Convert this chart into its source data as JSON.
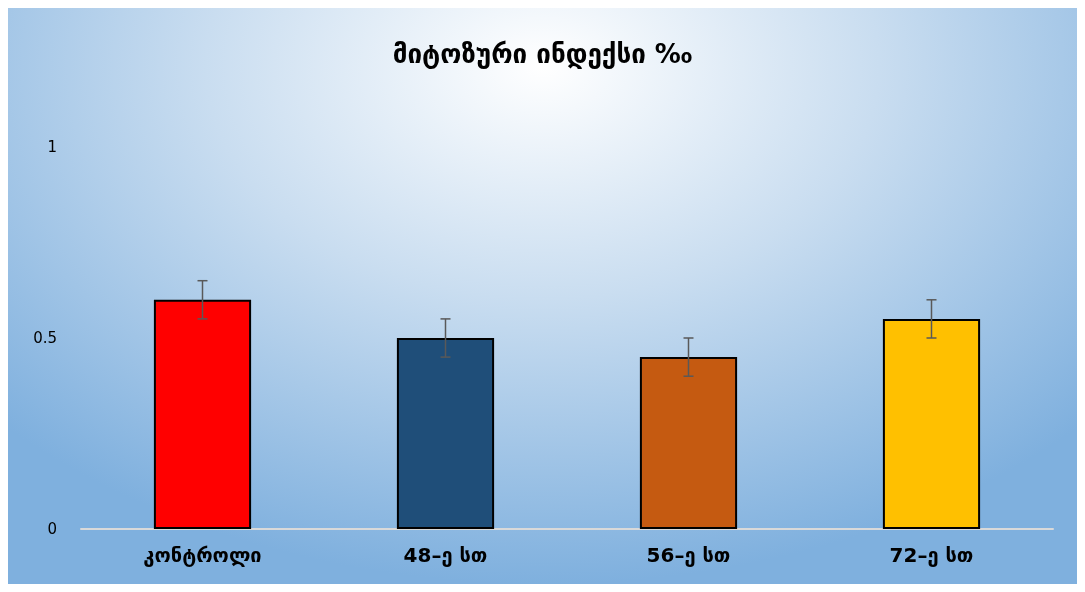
{
  "chart_data": {
    "type": "bar",
    "title": "მიტოზური ინდექსი ‰",
    "categories": [
      "კონტროლი",
      "48–ე სთ",
      "56–ე სთ",
      "72–ე სთ"
    ],
    "values": [
      0.6,
      0.5,
      0.45,
      0.55
    ],
    "colors": [
      "#ff0000",
      "#1f4e79",
      "#c55a11",
      "#ffc000"
    ],
    "errors": [
      0.05,
      0.05,
      0.05,
      0.05
    ],
    "ylim": [
      0,
      1
    ],
    "yticks": [
      0,
      0.5,
      1
    ],
    "grid": false
  }
}
